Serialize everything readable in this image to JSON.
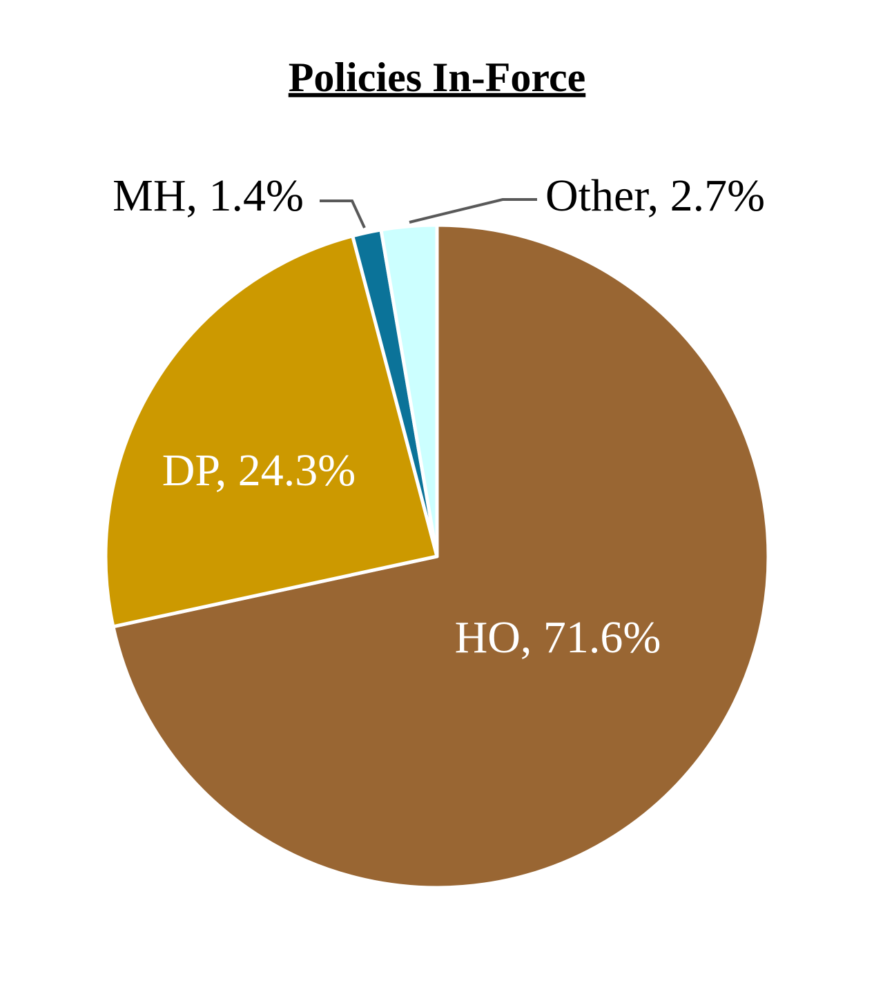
{
  "chart_data": {
    "type": "pie",
    "title": "Policies In-Force",
    "values": [
      71.6,
      24.3,
      1.4,
      2.7
    ],
    "value_labels": [
      "HO, 71.6%",
      "DP, 24.3%",
      "MH, 1.4%",
      "Other, 2.7%"
    ],
    "colors": [
      "#996633",
      "#cc9900",
      "#0b7399",
      "#ccffff"
    ]
  }
}
